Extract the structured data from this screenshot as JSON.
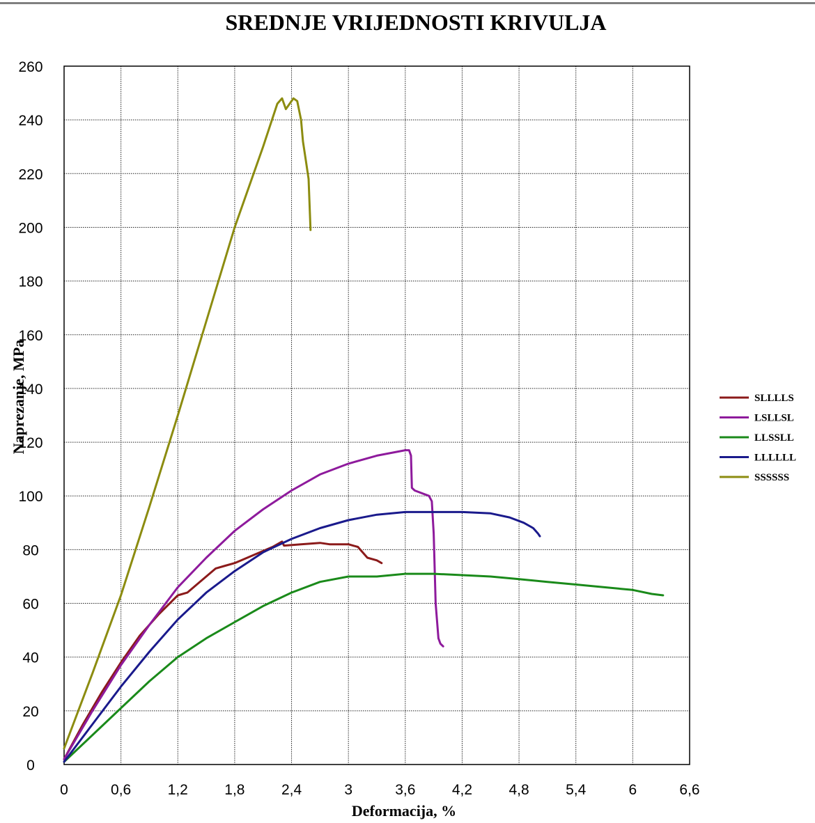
{
  "chart_data": {
    "type": "line",
    "title": "SREDNJE VRIJEDNOSTI KRIVULJA",
    "xlabel": "Deformacija, %",
    "ylabel": "Naprezanje, MPa",
    "xlim": [
      0,
      6.6
    ],
    "ylim": [
      0,
      260
    ],
    "x_ticks": [
      "0",
      "0,6",
      "1,2",
      "1,8",
      "2,4",
      "3",
      "3,6",
      "4,2",
      "4,8",
      "5,4",
      "6",
      "6,6"
    ],
    "y_ticks": [
      "0",
      "20",
      "40",
      "60",
      "80",
      "100",
      "120",
      "140",
      "160",
      "180",
      "200",
      "220",
      "240",
      "260"
    ],
    "grid": true,
    "legend_position": "right",
    "series": [
      {
        "name": "SLLLLS",
        "color": "#8b1a1a",
        "x": [
          0,
          0.2,
          0.4,
          0.6,
          0.8,
          1.0,
          1.2,
          1.3,
          1.4,
          1.6,
          1.7,
          1.8,
          2.0,
          2.2,
          2.3,
          2.32,
          2.5,
          2.7,
          2.8,
          2.9,
          3.0,
          3.1,
          3.15,
          3.2,
          3.3,
          3.35
        ],
        "y": [
          2,
          15,
          27,
          38,
          48,
          56,
          63,
          64,
          67,
          73,
          74,
          75,
          78,
          81,
          83,
          81.5,
          82,
          82.5,
          82,
          82,
          82,
          81,
          79,
          77,
          76,
          75
        ]
      },
      {
        "name": "LSLLSL",
        "color": "#8e1a9c",
        "x": [
          0,
          0.3,
          0.6,
          0.9,
          1.2,
          1.5,
          1.8,
          2.1,
          2.4,
          2.7,
          3.0,
          3.3,
          3.6,
          3.64,
          3.66,
          3.67,
          3.7,
          3.85,
          3.88,
          3.9,
          3.92,
          3.95,
          3.97,
          4.0
        ],
        "y": [
          2,
          20,
          37,
          52,
          66,
          77,
          87,
          95,
          102,
          108,
          112,
          115,
          117,
          117,
          115,
          103,
          102,
          100,
          98,
          86,
          60,
          47,
          45,
          44
        ]
      },
      {
        "name": "LLSSLL",
        "color": "#1a8a1a",
        "x": [
          0,
          0.3,
          0.6,
          0.9,
          1.2,
          1.5,
          1.8,
          2.1,
          2.4,
          2.7,
          3.0,
          3.3,
          3.6,
          3.9,
          4.2,
          4.5,
          4.8,
          5.1,
          5.4,
          5.7,
          6.0,
          6.2,
          6.32
        ],
        "y": [
          1,
          11,
          21,
          31,
          40,
          47,
          53,
          59,
          64,
          68,
          70,
          70,
          71,
          71,
          70.5,
          70,
          69,
          68,
          67,
          66,
          65,
          63.5,
          63
        ]
      },
      {
        "name": "LLLLLL",
        "color": "#1a1a8c",
        "x": [
          0,
          0.3,
          0.6,
          0.9,
          1.2,
          1.5,
          1.8,
          2.1,
          2.4,
          2.7,
          3.0,
          3.3,
          3.6,
          3.9,
          4.2,
          4.5,
          4.7,
          4.85,
          4.95,
          5.0,
          5.02
        ],
        "y": [
          1,
          15,
          29,
          42,
          54,
          64,
          72,
          79,
          84,
          88,
          91,
          93,
          94,
          94,
          94,
          93.5,
          92,
          90,
          88,
          86,
          85
        ]
      },
      {
        "name": "SSSSSS",
        "color": "#8c8c10",
        "x": [
          0,
          0.3,
          0.6,
          0.9,
          1.2,
          1.5,
          1.8,
          2.1,
          2.25,
          2.3,
          2.34,
          2.38,
          2.42,
          2.46,
          2.5,
          2.52,
          2.55,
          2.58,
          2.6
        ],
        "y": [
          6,
          34,
          63,
          96,
          130,
          165,
          200,
          230,
          246,
          248,
          244,
          246,
          248,
          247,
          240,
          232,
          225,
          218,
          199
        ]
      }
    ]
  }
}
